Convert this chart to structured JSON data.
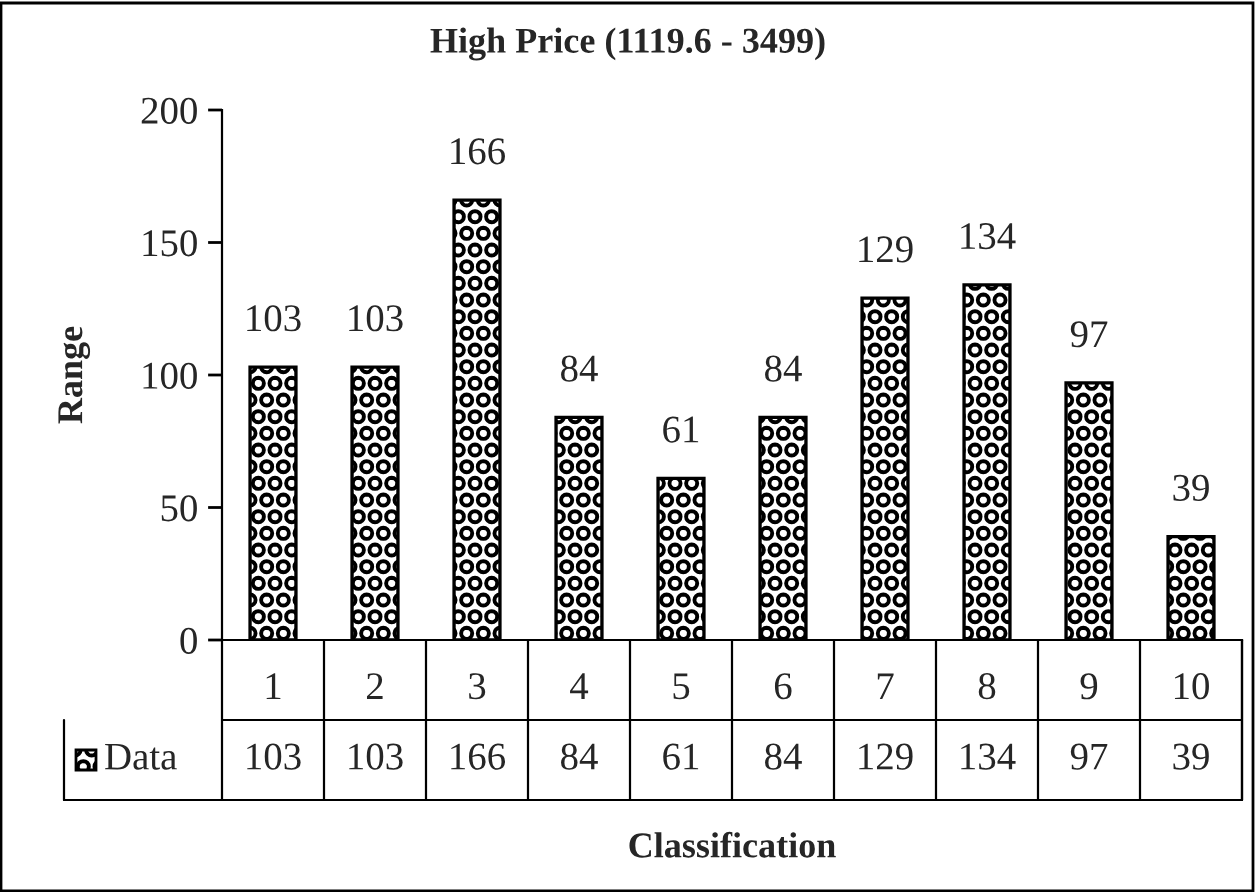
{
  "chart_data": {
    "type": "bar",
    "title": "High Price (1119.6 - 3499)",
    "xlabel": "Classification",
    "ylabel": "Range",
    "categories": [
      "1",
      "2",
      "3",
      "4",
      "5",
      "6",
      "7",
      "8",
      "9",
      "10"
    ],
    "series": [
      {
        "name": "Data",
        "color": "#000000",
        "values": [
          103,
          103,
          166,
          84,
          61,
          84,
          129,
          134,
          97,
          39
        ],
        "value_labels": [
          "103",
          "103",
          "166",
          "84",
          "61",
          "84",
          "129",
          "134",
          "97",
          "39"
        ]
      }
    ],
    "ylim": [
      0,
      200
    ],
    "yticks": [
      0,
      50,
      100,
      150,
      200
    ],
    "grid": false,
    "legend": "bottom left",
    "annotations": [
      "103",
      "103",
      "166",
      "84",
      "61",
      "84",
      "129",
      "134",
      "97",
      "39"
    ]
  }
}
